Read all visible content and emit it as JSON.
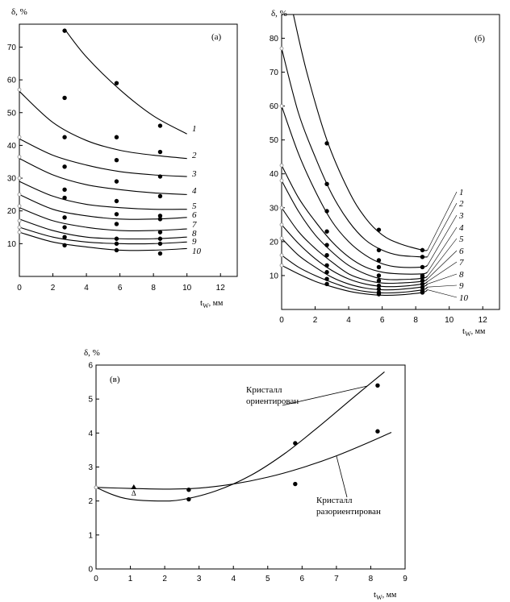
{
  "chart_data": [
    {
      "type": "scatter",
      "panel_label": "(а)",
      "xlabel": "t",
      "xlabel_sub": "W",
      "xlabel_unit": ", мм",
      "ylabel": "δ, %",
      "xlim": [
        0,
        13
      ],
      "ylim": [
        0,
        77
      ],
      "xticks": [
        "0",
        "2",
        "4",
        "6",
        "8",
        "10",
        "12"
      ],
      "yticks": [
        "10",
        "20",
        "30",
        "40",
        "50",
        "60",
        "70"
      ],
      "series": [
        {
          "name": "1",
          "x": [
            2.7,
            5.8,
            8.4
          ],
          "y": [
            75,
            59,
            46
          ],
          "fit": [
            [
              2.7,
              75.5
            ],
            [
              4.0,
              67
            ],
            [
              6.0,
              57
            ],
            [
              8.0,
              49
            ],
            [
              10.0,
              43.5
            ]
          ]
        },
        {
          "name": "2",
          "x": [
            0,
            2.7,
            5.8,
            8.4
          ],
          "y": [
            57,
            54.5,
            42.5,
            38
          ],
          "fit": [
            [
              0,
              56.5
            ],
            [
              2,
              47
            ],
            [
              4,
              41.5
            ],
            [
              6,
              38.5
            ],
            [
              8,
              37
            ],
            [
              10,
              36
            ]
          ]
        },
        {
          "name": "3",
          "x": [
            0,
            2.7,
            5.8,
            8.4
          ],
          "y": [
            42.5,
            42.5,
            35.5,
            30.5
          ],
          "fit": [
            [
              0,
              42
            ],
            [
              2,
              37
            ],
            [
              4,
              34
            ],
            [
              6,
              32
            ],
            [
              8,
              31
            ],
            [
              10,
              30.5
            ]
          ]
        },
        {
          "name": "4",
          "x": [
            0,
            2.7,
            5.8,
            8.4
          ],
          "y": [
            36.5,
            33.5,
            29,
            24.5
          ],
          "fit": [
            [
              0,
              36
            ],
            [
              2,
              31
            ],
            [
              4,
              28
            ],
            [
              6,
              26.5
            ],
            [
              8,
              25.5
            ],
            [
              10,
              25
            ]
          ]
        },
        {
          "name": "5",
          "x": [
            0,
            2.7,
            5.8,
            8.4
          ],
          "y": [
            30,
            26.5,
            23,
            18.5
          ],
          "fit": [
            [
              0,
              29
            ],
            [
              2,
              24.5
            ],
            [
              4,
              22
            ],
            [
              6,
              21
            ],
            [
              8,
              20.5
            ],
            [
              10,
              20.5
            ]
          ]
        },
        {
          "name": "6",
          "x": [
            0,
            2.7,
            5.8,
            8.4
          ],
          "y": [
            25,
            24,
            19,
            17.5
          ],
          "fit": [
            [
              0,
              25
            ],
            [
              2,
              20.5
            ],
            [
              4,
              18.5
            ],
            [
              6,
              17.5
            ],
            [
              8,
              17.5
            ],
            [
              10,
              18
            ]
          ]
        },
        {
          "name": "7",
          "x": [
            0,
            2.7,
            5.8,
            8.4
          ],
          "y": [
            21.5,
            18,
            16,
            13.5
          ],
          "fit": [
            [
              0,
              21
            ],
            [
              2,
              17
            ],
            [
              4,
              15
            ],
            [
              6,
              14
            ],
            [
              8,
              14
            ],
            [
              10,
              14.5
            ]
          ]
        },
        {
          "name": "8",
          "x": [
            0,
            2.7,
            5.8,
            8.4
          ],
          "y": [
            17,
            15,
            11.5,
            11.5
          ],
          "fit": [
            [
              0,
              17.5
            ],
            [
              2,
              14
            ],
            [
              4,
              12
            ],
            [
              6,
              11.5
            ],
            [
              8,
              11.5
            ],
            [
              10,
              12
            ]
          ]
        },
        {
          "name": "9",
          "x": [
            0,
            2.7,
            5.8,
            8.4
          ],
          "y": [
            15,
            12,
            10,
            10
          ],
          "fit": [
            [
              0,
              15
            ],
            [
              2,
              12
            ],
            [
              4,
              10.5
            ],
            [
              6,
              10
            ],
            [
              8,
              10
            ],
            [
              10,
              10.5
            ]
          ]
        },
        {
          "name": "10",
          "x": [
            0,
            2.7,
            5.8,
            8.4
          ],
          "y": [
            13.5,
            9.5,
            8,
            7
          ],
          "fit": [
            [
              0,
              13.5
            ],
            [
              2,
              10.5
            ],
            [
              4,
              9
            ],
            [
              6,
              8
            ],
            [
              8,
              8
            ],
            [
              10,
              8.5
            ]
          ]
        }
      ]
    },
    {
      "type": "scatter",
      "panel_label": "(б)",
      "xlabel": "t",
      "xlabel_sub": "W",
      "xlabel_unit": ", мм",
      "ylabel": "δ, %",
      "xlim": [
        0,
        13
      ],
      "ylim": [
        0,
        87
      ],
      "xticks": [
        "0",
        "2",
        "4",
        "6",
        "8",
        "10",
        "12"
      ],
      "yticks": [
        "10",
        "20",
        "30",
        "40",
        "50",
        "60",
        "70",
        "80"
      ],
      "series": [
        {
          "name": "1",
          "x": [
            2.7,
            5.8,
            8.4
          ],
          "y": [
            49,
            23.5,
            17.5
          ],
          "fit": [
            [
              0.7,
              87
            ],
            [
              1.5,
              70
            ],
            [
              2.7,
              50
            ],
            [
              4,
              35
            ],
            [
              5,
              27
            ],
            [
              6,
              22
            ],
            [
              7,
              19.5
            ],
            [
              8.4,
              17.5
            ],
            [
              8.7,
              17.5
            ]
          ]
        },
        {
          "name": "2",
          "x": [
            0,
            2.7,
            5.8,
            8.4
          ],
          "y": [
            77,
            37,
            17.5,
            15.5
          ],
          "fit": [
            [
              0,
              77
            ],
            [
              1,
              58
            ],
            [
              2,
              45
            ],
            [
              3,
              34
            ],
            [
              4,
              26
            ],
            [
              5,
              20.5
            ],
            [
              6,
              17.5
            ],
            [
              7,
              16
            ],
            [
              8.4,
              15.5
            ],
            [
              8.7,
              15.5
            ]
          ]
        },
        {
          "name": "3",
          "x": [
            0,
            2.7,
            5.8,
            8.4
          ],
          "y": [
            60,
            29,
            14.5,
            12.5
          ],
          "fit": [
            [
              0,
              60
            ],
            [
              1,
              46
            ],
            [
              2,
              35
            ],
            [
              3,
              26
            ],
            [
              4,
              20
            ],
            [
              5,
              16
            ],
            [
              6,
              13.5
            ],
            [
              7,
              12.5
            ],
            [
              8.4,
              12.5
            ],
            [
              8.7,
              13
            ]
          ]
        },
        {
          "name": "4",
          "x": [
            0,
            2.7,
            5.8,
            8.4
          ],
          "y": [
            42.5,
            23,
            12.5,
            10
          ],
          "fit": [
            [
              0,
              42.5
            ],
            [
              1,
              33
            ],
            [
              2,
              26
            ],
            [
              3,
              20
            ],
            [
              4,
              15.5
            ],
            [
              5,
              12.5
            ],
            [
              6,
              11
            ],
            [
              7,
              10.5
            ],
            [
              8.4,
              10.5
            ],
            [
              8.7,
              11
            ]
          ]
        },
        {
          "name": "5",
          "x": [
            0,
            2.7,
            5.8,
            8.4
          ],
          "y": [
            38,
            19,
            10,
            9.5
          ],
          "fit": [
            [
              0,
              38
            ],
            [
              1,
              29
            ],
            [
              2,
              22
            ],
            [
              3,
              17
            ],
            [
              4,
              13
            ],
            [
              5,
              10.5
            ],
            [
              6,
              9
            ],
            [
              7,
              8.8
            ],
            [
              8.4,
              9.2
            ],
            [
              8.7,
              9.8
            ]
          ]
        },
        {
          "name": "6",
          "x": [
            0,
            2.7,
            5.8,
            8.4
          ],
          "y": [
            30,
            16,
            8.5,
            8.5
          ],
          "fit": [
            [
              0,
              30
            ],
            [
              1,
              23
            ],
            [
              2,
              18
            ],
            [
              3,
              14
            ],
            [
              4,
              10.5
            ],
            [
              5,
              8.7
            ],
            [
              6,
              7.8
            ],
            [
              7,
              7.8
            ],
            [
              8.4,
              8.3
            ],
            [
              8.7,
              9
            ]
          ]
        },
        {
          "name": "7",
          "x": [
            0,
            2.7,
            5.8,
            8.4
          ],
          "y": [
            25,
            13,
            7,
            7.5
          ],
          "fit": [
            [
              0,
              25
            ],
            [
              1,
              19.5
            ],
            [
              2,
              15
            ],
            [
              3,
              11.5
            ],
            [
              4,
              9
            ],
            [
              5,
              7.5
            ],
            [
              6,
              6.8
            ],
            [
              7,
              6.8
            ],
            [
              8.4,
              7.5
            ],
            [
              8.7,
              8.2
            ]
          ]
        },
        {
          "name": "8",
          "x": [
            0,
            2.7,
            5.8,
            8.4
          ],
          "y": [
            21,
            11,
            6,
            6.5
          ],
          "fit": [
            [
              0,
              21
            ],
            [
              1,
              16
            ],
            [
              2,
              12.5
            ],
            [
              3,
              9.5
            ],
            [
              4,
              7.5
            ],
            [
              5,
              6.3
            ],
            [
              6,
              5.8
            ],
            [
              7,
              5.9
            ],
            [
              8.4,
              6.7
            ],
            [
              8.7,
              7.5
            ]
          ]
        },
        {
          "name": "9",
          "x": [
            0,
            2.7,
            5.8,
            8.4
          ],
          "y": [
            16,
            9,
            5,
            5.5
          ],
          "fit": [
            [
              0,
              16
            ],
            [
              1,
              12.5
            ],
            [
              2,
              10
            ],
            [
              3,
              8
            ],
            [
              4,
              6.3
            ],
            [
              5,
              5.3
            ],
            [
              6,
              4.9
            ],
            [
              7,
              5
            ],
            [
              8.4,
              5.8
            ],
            [
              8.7,
              6.6
            ]
          ]
        },
        {
          "name": "10",
          "x": [
            0,
            2.7,
            5.8,
            8.4
          ],
          "y": [
            13,
            7.5,
            4.5,
            5
          ],
          "fit": [
            [
              0,
              13
            ],
            [
              1,
              10.5
            ],
            [
              2,
              8.3
            ],
            [
              3,
              6.7
            ],
            [
              4,
              5.4
            ],
            [
              5,
              4.6
            ],
            [
              6,
              4.2
            ],
            [
              7,
              4.3
            ],
            [
              8.4,
              5
            ],
            [
              8.7,
              5.8
            ]
          ]
        }
      ]
    },
    {
      "type": "scatter",
      "panel_label": "(в)",
      "xlabel": "t",
      "xlabel_sub": "W",
      "xlabel_unit": ", мм",
      "ylabel": "δ, %",
      "xlim": [
        0,
        9
      ],
      "ylim": [
        0,
        6
      ],
      "xticks": [
        "0",
        "1",
        "2",
        "3",
        "4",
        "5",
        "6",
        "7",
        "8",
        "9"
      ],
      "yticks": [
        "0",
        "1",
        "2",
        "3",
        "4",
        "5",
        "6"
      ],
      "triangle_marker": {
        "label": "Δ",
        "x": 1.1,
        "y": 2.3
      },
      "series": [
        {
          "name": "Кристалл ориентирован",
          "x": [
            0,
            2.7,
            5.8,
            8.2
          ],
          "y": [
            2.4,
            2.05,
            3.7,
            5.4
          ],
          "fit": [
            [
              0,
              2.4
            ],
            [
              0.5,
              2.18
            ],
            [
              1,
              2.05
            ],
            [
              1.8,
              2.0
            ],
            [
              2.5,
              2.04
            ],
            [
              3.5,
              2.3
            ],
            [
              4.5,
              2.75
            ],
            [
              5.5,
              3.4
            ],
            [
              6.5,
              4.2
            ],
            [
              7.5,
              5.05
            ],
            [
              8.4,
              5.8
            ]
          ]
        },
        {
          "name": "Кристалл разориентирован",
          "x": [
            0,
            2.7,
            5.8,
            8.2
          ],
          "y": [
            2.4,
            2.33,
            2.5,
            4.05
          ],
          "fit": [
            [
              0,
              2.4
            ],
            [
              1,
              2.37
            ],
            [
              2,
              2.35
            ],
            [
              3,
              2.38
            ],
            [
              4,
              2.5
            ],
            [
              5,
              2.7
            ],
            [
              6,
              2.98
            ],
            [
              7,
              3.33
            ],
            [
              8,
              3.75
            ],
            [
              8.6,
              4.02
            ]
          ]
        }
      ],
      "annotations": [
        {
          "lines": [
            "Кристалл",
            "ориентирован"
          ],
          "series": 0
        },
        {
          "lines": [
            "Кристалл",
            "разориентирован"
          ],
          "series": 1
        }
      ]
    }
  ]
}
